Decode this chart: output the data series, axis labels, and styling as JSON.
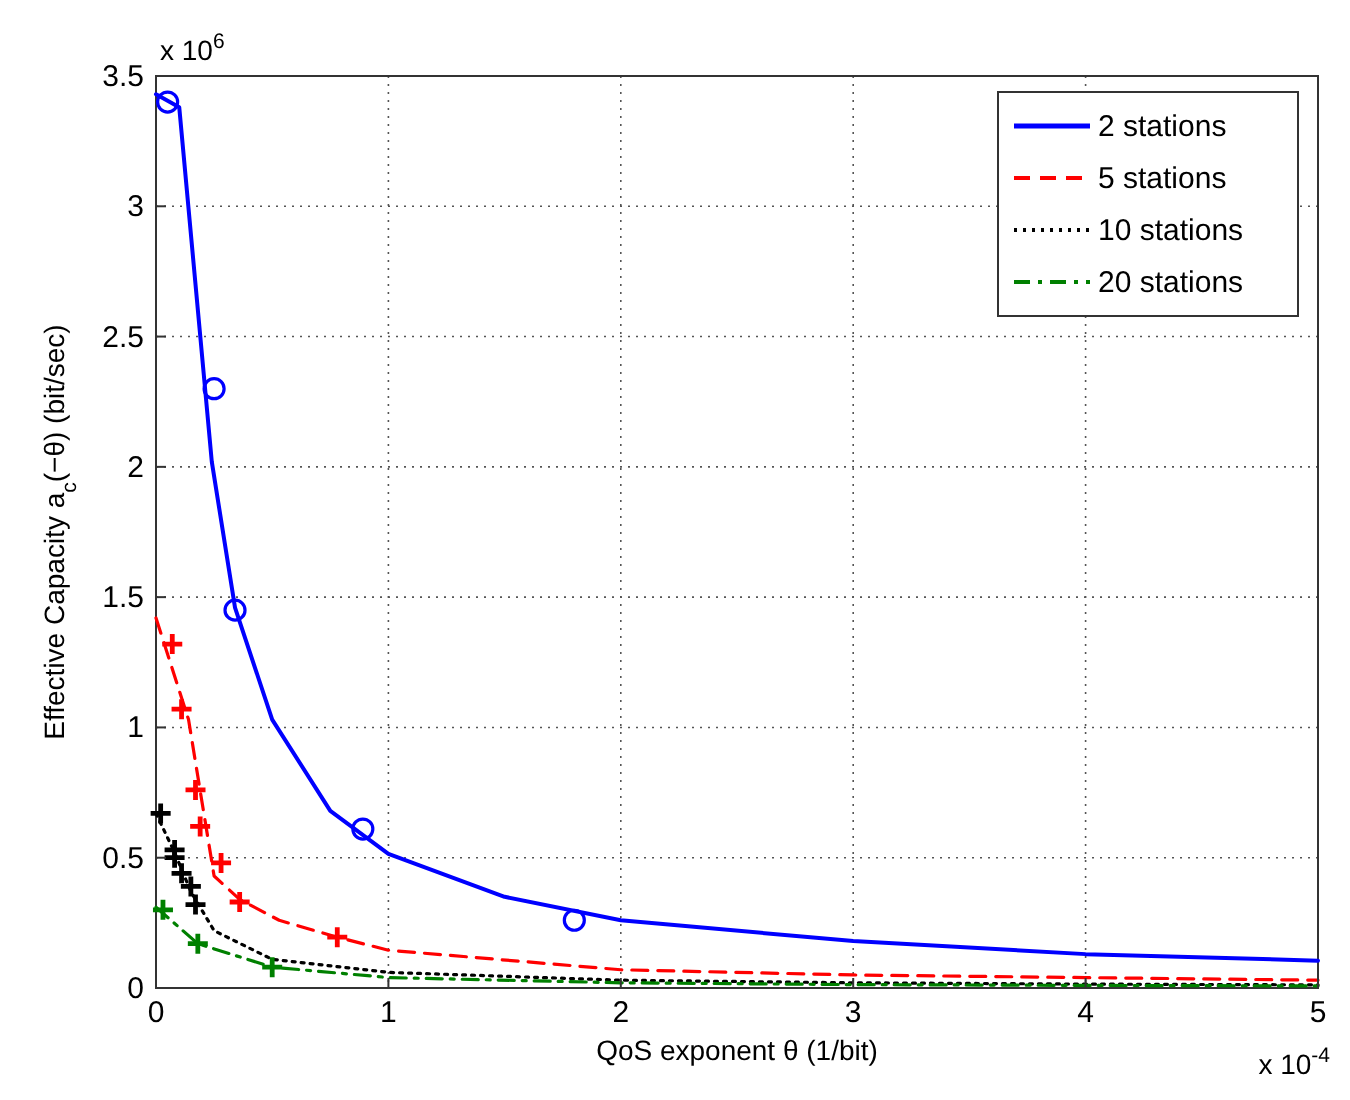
{
  "chart_data": {
    "type": "line",
    "xlabel": "QoS exponent θ (1/bit)",
    "ylabel": "Effective Capacity a$_{c}$(−θ) (bit/sec)",
    "xlim": [
      0,
      5
    ],
    "ylim": [
      0,
      3.5
    ],
    "xticks": [
      0,
      1,
      2,
      3,
      4,
      5
    ],
    "yticks": [
      0,
      0.5,
      1,
      1.5,
      2,
      2.5,
      3,
      3.5
    ],
    "grid": true,
    "legend": "top right",
    "annotations": [
      "x 10$^{6}$",
      "x 10$^{-4}$"
    ],
    "series": [
      {
        "name": "2 stations",
        "color": "#0000ff",
        "line_style": "solid",
        "marker": "none",
        "x": [
          0,
          0.1,
          0.24,
          0.34,
          0.5,
          0.75,
          1,
          1.5,
          2,
          3,
          4,
          5
        ],
        "values": [
          3.43,
          3.38,
          2.02,
          1.46,
          1.03,
          0.68,
          0.515,
          0.35,
          0.26,
          0.18,
          0.13,
          0.105
        ]
      },
      {
        "name": "5 stations",
        "color": "#ff0000",
        "line_style": "dashed",
        "marker": "none",
        "x": [
          0,
          0.14,
          0.25,
          0.36,
          0.53,
          0.78,
          1,
          2,
          3,
          4,
          5
        ],
        "values": [
          1.42,
          1.03,
          0.43,
          0.34,
          0.26,
          0.195,
          0.145,
          0.07,
          0.05,
          0.04,
          0.03
        ]
      },
      {
        "name": "10 stations",
        "color": "#000000",
        "line_style": "dotted",
        "marker": "none",
        "x": [
          0,
          0.08,
          0.15,
          0.25,
          0.5,
          1,
          2,
          3,
          4,
          5
        ],
        "values": [
          0.67,
          0.52,
          0.37,
          0.22,
          0.11,
          0.06,
          0.03,
          0.02,
          0.015,
          0.012
        ]
      },
      {
        "name": "20 stations",
        "color": "#008000",
        "line_style": "dashdot",
        "marker": "none",
        "x": [
          0,
          0.18,
          0.5,
          1,
          2,
          3,
          4,
          5
        ],
        "values": [
          0.31,
          0.17,
          0.08,
          0.04,
          0.02,
          0.013,
          0.01,
          0.008
        ]
      },
      {
        "type": "scatter",
        "color": "#0000ff",
        "marker": "circle",
        "x": [
          0.05,
          0.25,
          0.34,
          0.89,
          1.8
        ],
        "values": [
          3.4,
          2.3,
          1.45,
          0.61,
          0.26
        ]
      },
      {
        "type": "scatter",
        "color": "#ff0000",
        "marker": "cross",
        "x": [
          0.07,
          0.11,
          0.17,
          0.19,
          0.28,
          0.36,
          0.78
        ],
        "values": [
          1.32,
          1.07,
          0.76,
          0.62,
          0.48,
          0.33,
          0.195
        ]
      },
      {
        "type": "scatter",
        "color": "#000000",
        "marker": "cross",
        "x": [
          0.02,
          0.08,
          0.08,
          0.11,
          0.15,
          0.17
        ],
        "values": [
          0.67,
          0.53,
          0.5,
          0.44,
          0.39,
          0.32
        ]
      },
      {
        "type": "scatter",
        "color": "#008000",
        "marker": "cross",
        "x": [
          0.03,
          0.18,
          0.5
        ],
        "values": [
          0.3,
          0.17,
          0.08
        ]
      }
    ]
  }
}
